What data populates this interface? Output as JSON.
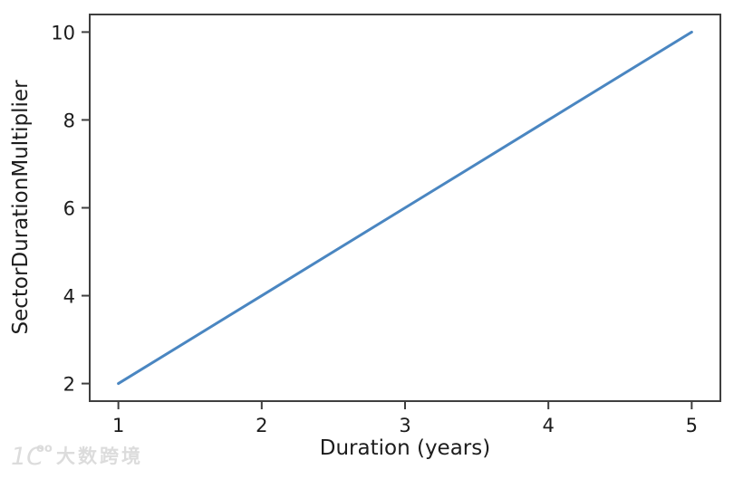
{
  "chart_data": {
    "type": "line",
    "title": "",
    "xlabel": "Duration (years)",
    "ylabel": "SectorDurationMultiplier",
    "x": [
      1,
      2,
      3,
      4,
      5
    ],
    "series": [
      {
        "name": "SectorDurationMultiplier",
        "values": [
          2,
          4,
          6,
          8,
          10
        ]
      }
    ],
    "x_ticks": [
      1,
      2,
      3,
      4,
      5
    ],
    "y_ticks": [
      2,
      4,
      6,
      8,
      10
    ],
    "xlim": [
      0.8,
      5.2
    ],
    "ylim": [
      1.6,
      10.4
    ],
    "grid": false,
    "legend_position": "none",
    "line_color": "#4a86c1",
    "spine_color": "#3f3f3f",
    "text_color": "#1c1c1c"
  },
  "watermark": {
    "logo_main": "1C",
    "logo_sup": "oo",
    "text": "大数跨境",
    "color": "#d9d9d9"
  }
}
